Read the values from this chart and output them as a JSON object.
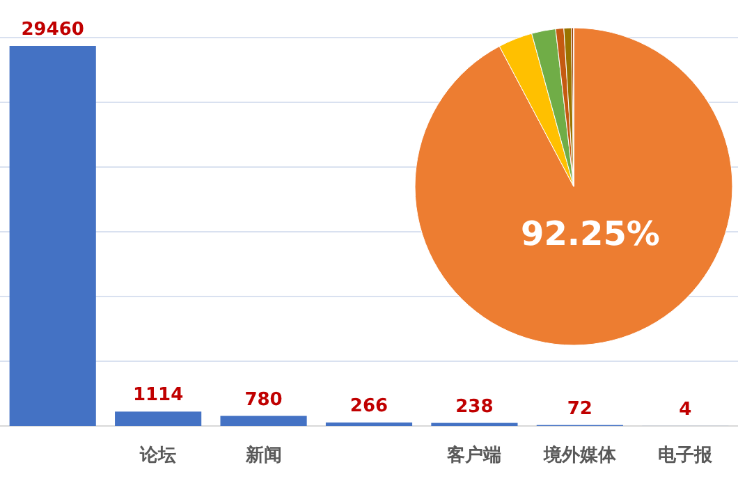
{
  "chart_data": [
    {
      "type": "bar",
      "categories": [
        null,
        "论坛",
        "新闻",
        null,
        "客户端",
        "境外媒体",
        "电子报"
      ],
      "values": [
        29460,
        1114,
        780,
        266,
        238,
        72,
        4
      ],
      "color": "#4472c4",
      "data_labels": true,
      "grid": "y"
    },
    {
      "type": "pie",
      "categories": [
        null,
        null,
        null,
        null,
        null,
        null,
        null
      ],
      "values": [
        92.25,
        3.49,
        2.44,
        0.83,
        0.75,
        0.23,
        0.01
      ],
      "colors": [
        "#ed7d31",
        "#ffc000",
        "#70ad47",
        "#c55a11",
        "#997300",
        "#9e480e",
        "#43682b"
      ],
      "value_labels": [
        "92.25%",
        null,
        null,
        null,
        null,
        null,
        null
      ]
    }
  ]
}
